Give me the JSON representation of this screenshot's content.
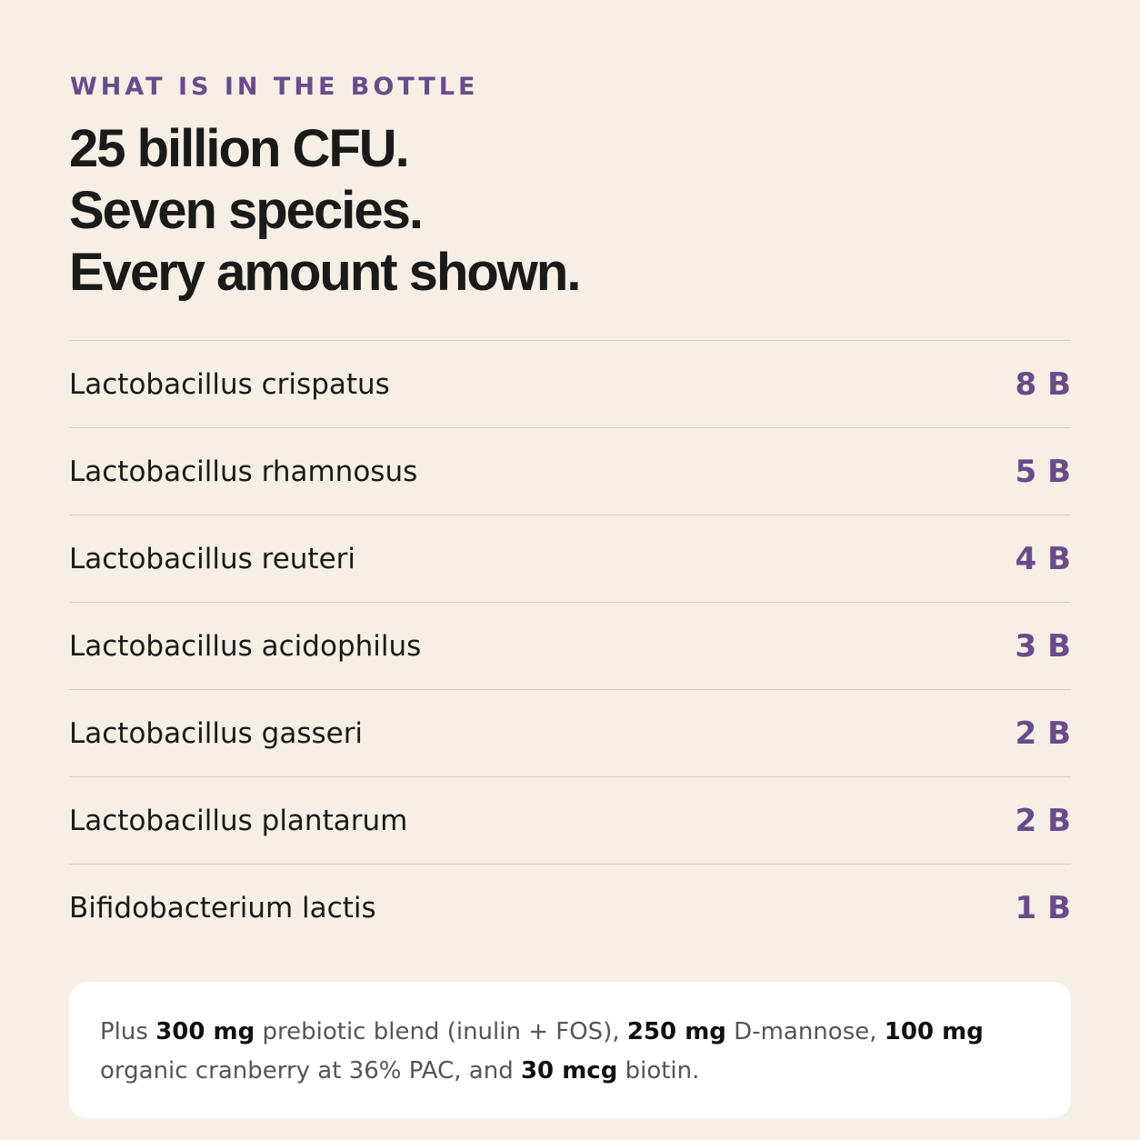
{
  "eyebrow": "WHAT IS IN THE BOTTLE",
  "headline": [
    "25 billion CFU.",
    "Seven species.",
    "Every amount shown."
  ],
  "ingredients": [
    {
      "name": "Lactobacillus crispatus",
      "amount": "8 B"
    },
    {
      "name": "Lactobacillus rhamnosus",
      "amount": "5 B"
    },
    {
      "name": "Lactobacillus reuteri",
      "amount": "4 B"
    },
    {
      "name": "Lactobacillus acidophilus",
      "amount": "3 B"
    },
    {
      "name": "Lactobacillus gasseri",
      "amount": "2 B"
    },
    {
      "name": "Lactobacillus plantarum",
      "amount": "2 B"
    },
    {
      "name": "Bifidobacterium lactis",
      "amount": "1 B"
    }
  ],
  "note": [
    {
      "text": "Plus ",
      "bold": false
    },
    {
      "text": "300 mg",
      "bold": true
    },
    {
      "text": " prebiotic blend (inulin + FOS), ",
      "bold": false
    },
    {
      "text": "250 mg",
      "bold": true
    },
    {
      "text": " D-mannose, ",
      "bold": false
    },
    {
      "text": "100 mg",
      "bold": true
    },
    {
      "text": " organic cranberry at 36% PAC, and ",
      "bold": false
    },
    {
      "text": "30 mcg",
      "bold": true
    },
    {
      "text": " biotin.",
      "bold": false
    }
  ]
}
